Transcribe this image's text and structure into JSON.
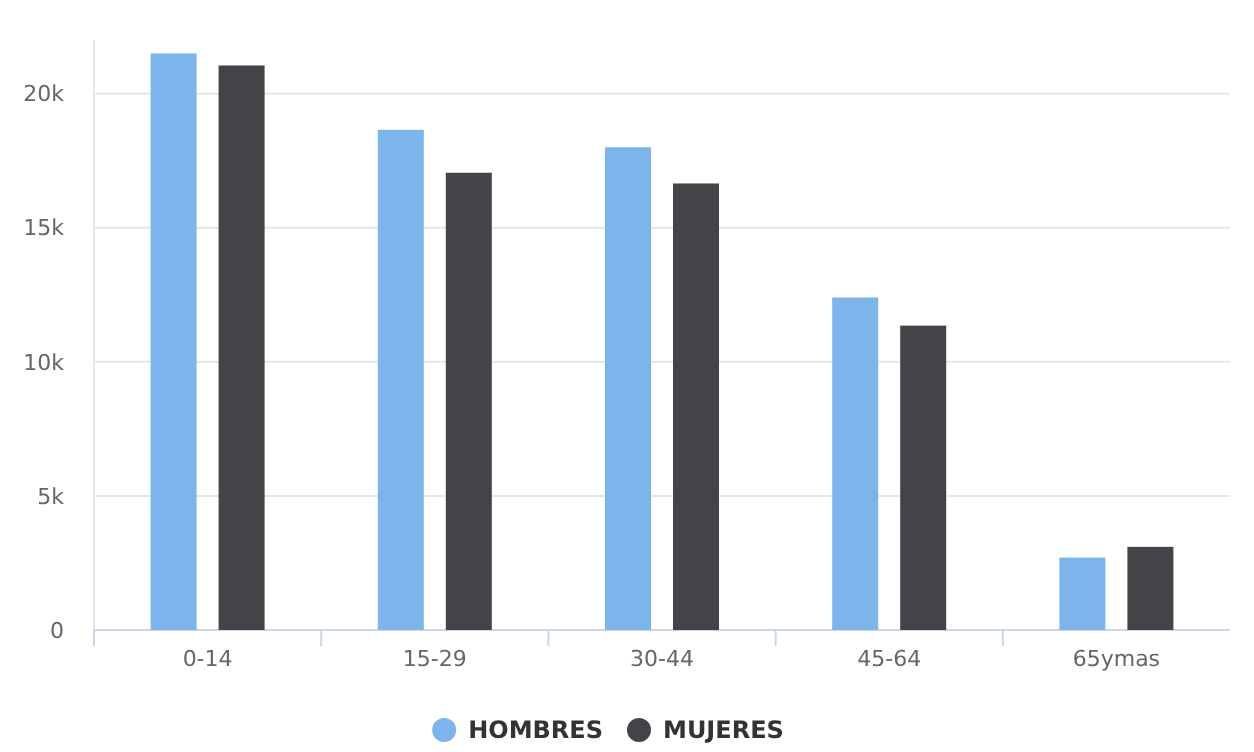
{
  "chart_data": {
    "type": "bar",
    "categories": [
      "0-14",
      "15-29",
      "30-44",
      "45-64",
      "65ymas"
    ],
    "series": [
      {
        "name": "HOMBRES",
        "color": "#7cb5ec",
        "values": [
          21500,
          18650,
          18000,
          12400,
          2700
        ]
      },
      {
        "name": "MUJERES",
        "color": "#434348",
        "values": [
          21050,
          17050,
          16650,
          11350,
          3100
        ]
      }
    ],
    "ylim": [
      0,
      22000
    ],
    "yticks": [
      {
        "value": 0,
        "label": "0"
      },
      {
        "value": 5000,
        "label": "5k"
      },
      {
        "value": 10000,
        "label": "10k"
      },
      {
        "value": 15000,
        "label": "15k"
      },
      {
        "value": 20000,
        "label": "20k"
      }
    ],
    "grid": "y",
    "legend": "bottom"
  }
}
